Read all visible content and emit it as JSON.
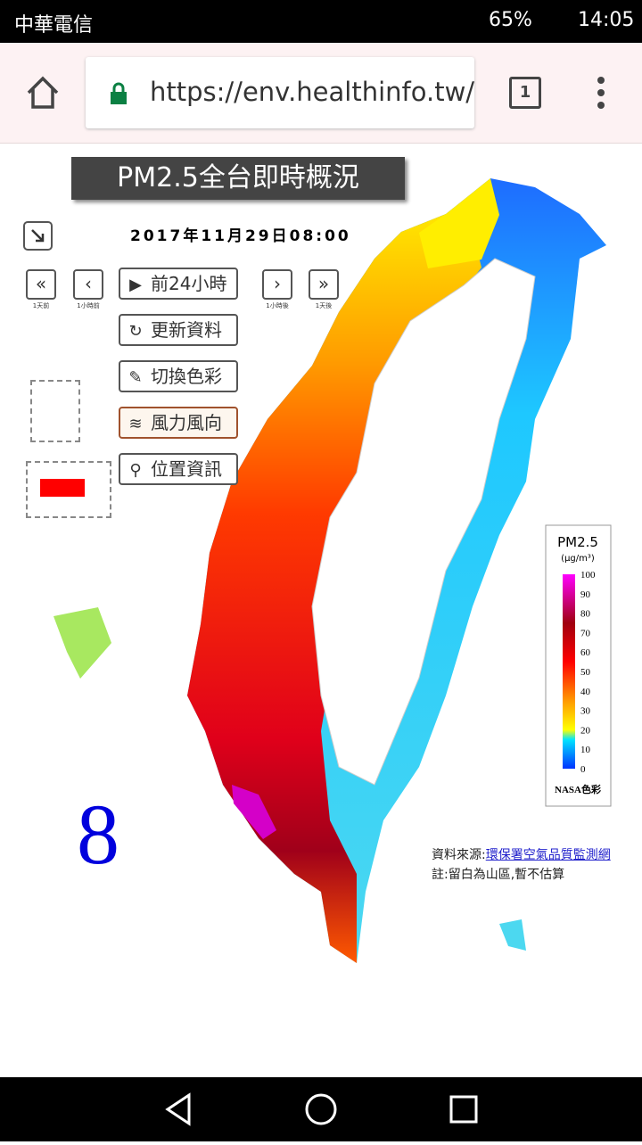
{
  "status_bar": {
    "carrier": "中華電信",
    "battery": "65%",
    "time": "14:05"
  },
  "browser": {
    "url": "https://env.healthinfo.tw/",
    "tab_count": "1"
  },
  "page": {
    "title": "PM2.5全台即時概況",
    "datetime": "2017年11月29日08:00",
    "nav_labels": [
      "1天前",
      "1小時前",
      "1小時後",
      "1天後"
    ],
    "buttons": [
      "前24小時",
      "更新資料",
      "切換色彩",
      "風力風向",
      "位置資訊"
    ],
    "big_number": "8",
    "legend": {
      "title": "PM2.5",
      "unit": "(μg/m³)",
      "ticks": [
        100,
        90,
        80,
        70,
        60,
        50,
        40,
        30,
        20,
        10,
        0
      ],
      "footer": "NASA色彩"
    },
    "source_label": "資料來源:",
    "source_link": "環保署空氣品質監測網",
    "note": "註:留白為山區,暫不估算"
  }
}
